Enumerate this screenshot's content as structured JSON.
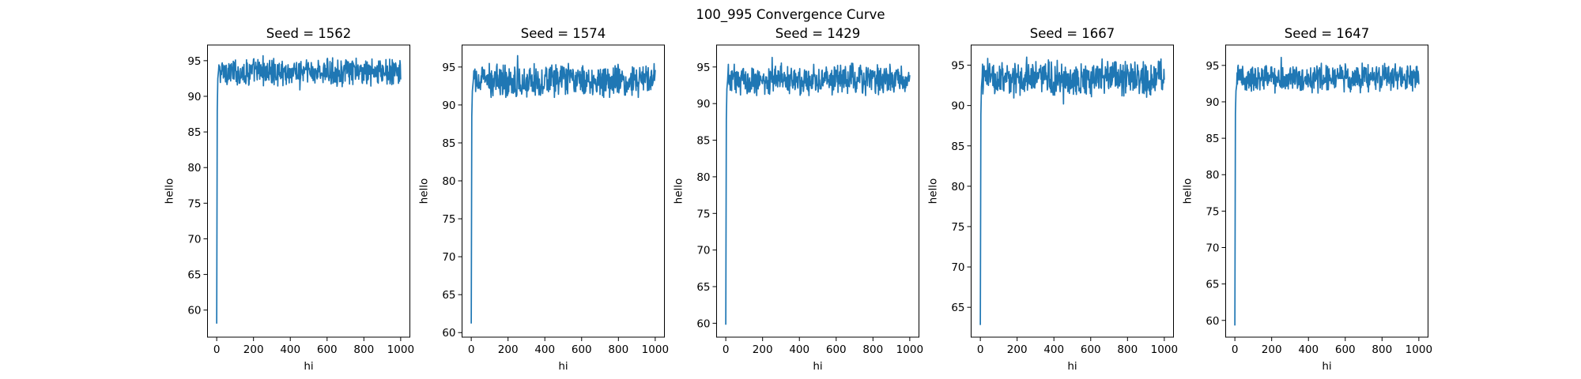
{
  "figure": {
    "suptitle": "100_995 Convergence Curve"
  },
  "chart_data": [
    {
      "type": "line",
      "title": "Seed = 1562",
      "xlabel": "hi",
      "ylabel": "hello",
      "xlim": [
        -50,
        1050
      ],
      "ylim": [
        56.2,
        97.2
      ],
      "xticks": [
        "0",
        "200",
        "400",
        "600",
        "800",
        "1000"
      ],
      "yticks": [
        "60",
        "65",
        "70",
        "75",
        "80",
        "85",
        "90",
        "95"
      ],
      "grid": false,
      "color": "#1f77b4",
      "series": [
        {
          "x_start": 0,
          "x_end": 1000,
          "initial_value": 58.1,
          "plateau_mean": 93.4,
          "plateau_low": 90.9,
          "plateau_high": 95.7,
          "values": [
            58.1,
            88.0,
            92.5,
            93.6
          ]
        }
      ]
    },
    {
      "type": "line",
      "title": "Seed = 1574",
      "xlabel": "hi",
      "ylabel": "hello",
      "xlim": [
        -50,
        1050
      ],
      "ylim": [
        59.4,
        97.9
      ],
      "xticks": [
        "0",
        "200",
        "400",
        "600",
        "800",
        "1000"
      ],
      "yticks": [
        "60",
        "65",
        "70",
        "75",
        "80",
        "85",
        "90",
        "95"
      ],
      "grid": false,
      "color": "#1f77b4",
      "series": [
        {
          "x_start": 0,
          "x_end": 1000,
          "initial_value": 61.2,
          "plateau_mean": 93.2,
          "plateau_low": 91.0,
          "plateau_high": 96.5,
          "values": [
            61.2,
            88.5,
            91.8,
            92.9
          ]
        }
      ]
    },
    {
      "type": "line",
      "title": "Seed = 1429",
      "xlabel": "hi",
      "ylabel": "hello",
      "xlim": [
        -50,
        1050
      ],
      "ylim": [
        58.1,
        98.0
      ],
      "xticks": [
        "0",
        "200",
        "400",
        "600",
        "800",
        "1000"
      ],
      "yticks": [
        "60",
        "65",
        "70",
        "75",
        "80",
        "85",
        "90",
        "95"
      ],
      "grid": false,
      "color": "#1f77b4",
      "series": [
        {
          "x_start": 0,
          "x_end": 1000,
          "initial_value": 59.8,
          "plateau_mean": 93.3,
          "plateau_low": 91.1,
          "plateau_high": 96.3,
          "values": [
            59.8,
            87.9,
            92.0,
            93.2
          ]
        }
      ]
    },
    {
      "type": "line",
      "title": "Seed = 1667",
      "xlabel": "hi",
      "ylabel": "hello",
      "xlim": [
        -50,
        1050
      ],
      "ylim": [
        61.3,
        97.5
      ],
      "xticks": [
        "0",
        "200",
        "400",
        "600",
        "800",
        "1000"
      ],
      "yticks": [
        "65",
        "70",
        "75",
        "80",
        "85",
        "90",
        "95"
      ],
      "grid": false,
      "color": "#1f77b4",
      "series": [
        {
          "x_start": 0,
          "x_end": 1000,
          "initial_value": 62.8,
          "plateau_mean": 93.4,
          "plateau_low": 90.2,
          "plateau_high": 96.0,
          "values": [
            62.8,
            88.8,
            92.3,
            93.5
          ]
        }
      ]
    },
    {
      "type": "line",
      "title": "Seed = 1647",
      "xlabel": "hi",
      "ylabel": "hello",
      "xlim": [
        -50,
        1050
      ],
      "ylim": [
        57.7,
        97.8
      ],
      "xticks": [
        "0",
        "200",
        "400",
        "600",
        "800",
        "1000"
      ],
      "yticks": [
        "60",
        "65",
        "70",
        "75",
        "80",
        "85",
        "90",
        "95"
      ],
      "grid": false,
      "color": "#1f77b4",
      "series": [
        {
          "x_start": 0,
          "x_end": 1000,
          "initial_value": 59.3,
          "plateau_mean": 93.3,
          "plateau_low": 91.2,
          "plateau_high": 96.1,
          "values": [
            59.3,
            88.4,
            91.5,
            92.3
          ]
        }
      ]
    }
  ]
}
